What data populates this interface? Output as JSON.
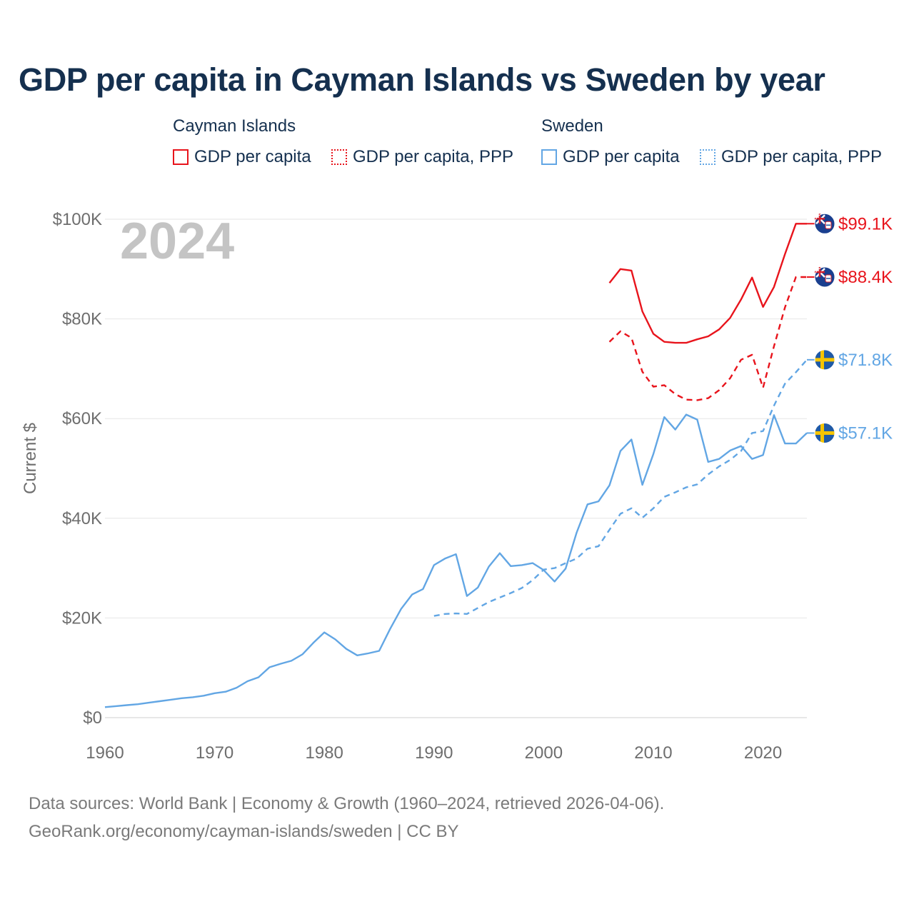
{
  "title": "GDP per capita in Cayman Islands vs Sweden by year",
  "legend": {
    "groups": [
      {
        "name": "Cayman Islands",
        "color": "#e8141c",
        "items": [
          {
            "label": "GDP per capita",
            "style": "solid"
          },
          {
            "label": "GDP per capita, PPP",
            "style": "dotted"
          }
        ]
      },
      {
        "name": "Sweden",
        "color": "#62a6e4",
        "items": [
          {
            "label": "GDP per capita",
            "style": "solid"
          },
          {
            "label": "GDP per capita, PPP",
            "style": "dotted"
          }
        ]
      }
    ]
  },
  "year_watermark": "2024",
  "sources": {
    "line1": "Data sources: World Bank | Economy & Growth (1960–2024, retrieved 2026-04-06).",
    "line2": "GeoRank.org/economy/cayman-islands/sweden | CC BY"
  },
  "chart_data": {
    "type": "line",
    "title": "GDP per capita in Cayman Islands vs Sweden by year",
    "xlabel": "",
    "ylabel": "Current $",
    "xlim": [
      1960,
      2024
    ],
    "ylim": [
      0,
      100000
    ],
    "grid": true,
    "x_ticks": [
      1960,
      1970,
      1980,
      1990,
      2000,
      2010,
      2020
    ],
    "x_tick_labels": [
      "1960",
      "1970",
      "1980",
      "1990",
      "2000",
      "2010",
      "2020"
    ],
    "y_ticks": [
      0,
      20000,
      40000,
      60000,
      80000,
      100000
    ],
    "y_tick_labels": [
      "$0",
      "$20K",
      "$40K",
      "$60K",
      "$80K",
      "$100K"
    ],
    "series": [
      {
        "name": "Cayman Islands GDP per capita",
        "country": "Cayman Islands",
        "color": "#e8141c",
        "dash": "solid",
        "end_label": "$99.1K",
        "flag": "cayman-islands-flag-icon",
        "x": [
          2006,
          2007,
          2008,
          2009,
          2010,
          2011,
          2012,
          2013,
          2014,
          2015,
          2016,
          2017,
          2018,
          2019,
          2020,
          2021,
          2022,
          2023,
          2024
        ],
        "values": [
          87200,
          90000,
          89700,
          81500,
          77000,
          75400,
          75200,
          75200,
          75900,
          76500,
          77900,
          80200,
          83900,
          88300,
          82400,
          86400,
          93000,
          99100,
          99100
        ]
      },
      {
        "name": "Cayman Islands GDP per capita, PPP",
        "country": "Cayman Islands",
        "color": "#e8141c",
        "dash": "dashed",
        "end_label": "$88.4K",
        "flag": "cayman-islands-flag-icon",
        "x": [
          2006,
          2007,
          2008,
          2009,
          2010,
          2011,
          2012,
          2013,
          2014,
          2015,
          2016,
          2017,
          2018,
          2019,
          2020,
          2021,
          2022,
          2023,
          2024
        ],
        "values": [
          75400,
          77500,
          76200,
          69400,
          66400,
          66700,
          64900,
          63800,
          63700,
          64100,
          65700,
          68100,
          71800,
          72800,
          66200,
          74500,
          82300,
          88400,
          88400
        ]
      },
      {
        "name": "Sweden GDP per capita",
        "country": "Sweden",
        "color": "#62a6e4",
        "dash": "solid",
        "end_label": "$57.1K",
        "flag": "sweden-flag-icon",
        "x": [
          1960,
          1961,
          1962,
          1963,
          1964,
          1965,
          1966,
          1967,
          1968,
          1969,
          1970,
          1971,
          1972,
          1973,
          1974,
          1975,
          1976,
          1977,
          1978,
          1979,
          1980,
          1981,
          1982,
          1983,
          1984,
          1985,
          1986,
          1987,
          1988,
          1989,
          1990,
          1991,
          1992,
          1993,
          1994,
          1995,
          1996,
          1997,
          1998,
          1999,
          2000,
          2001,
          2002,
          2003,
          2004,
          2005,
          2006,
          2007,
          2008,
          2009,
          2010,
          2011,
          2012,
          2013,
          2014,
          2015,
          2016,
          2017,
          2018,
          2019,
          2020,
          2021,
          2022,
          2023,
          2024
        ],
        "values": [
          2100,
          2300,
          2500,
          2700,
          3000,
          3300,
          3600,
          3900,
          4100,
          4400,
          4900,
          5200,
          6000,
          7300,
          8100,
          10100,
          10800,
          11400,
          12700,
          15000,
          17100,
          15700,
          13800,
          12500,
          12900,
          13400,
          17800,
          21800,
          24700,
          25800,
          30600,
          31900,
          32800,
          24400,
          26100,
          30300,
          33000,
          30400,
          30600,
          31000,
          29600,
          27300,
          29900,
          37100,
          42800,
          43400,
          46600,
          53500,
          55800,
          46700,
          52900,
          60300,
          57800,
          60800,
          59800,
          51300,
          51900,
          53600,
          54500,
          51900,
          52700,
          60700,
          55000,
          55000,
          57100
        ]
      },
      {
        "name": "Sweden GDP per capita, PPP",
        "country": "Sweden",
        "color": "#62a6e4",
        "dash": "dashed",
        "end_label": "$71.8K",
        "flag": "sweden-flag-icon",
        "x": [
          1990,
          1991,
          1992,
          1993,
          1994,
          1995,
          1996,
          1997,
          1998,
          1999,
          2000,
          2001,
          2002,
          2003,
          2004,
          2005,
          2006,
          2007,
          2008,
          2009,
          2010,
          2011,
          2012,
          2013,
          2014,
          2015,
          2016,
          2017,
          2018,
          2019,
          2020,
          2021,
          2022,
          2023,
          2024
        ],
        "values": [
          20400,
          20800,
          20900,
          20800,
          22000,
          23200,
          24100,
          25000,
          26000,
          27600,
          29700,
          30000,
          31000,
          31900,
          33900,
          34400,
          37700,
          40900,
          42000,
          40100,
          42000,
          44300,
          45200,
          46200,
          46800,
          48800,
          50400,
          51700,
          53500,
          57100,
          57500,
          62600,
          67000,
          69300,
          71800
        ]
      }
    ]
  }
}
